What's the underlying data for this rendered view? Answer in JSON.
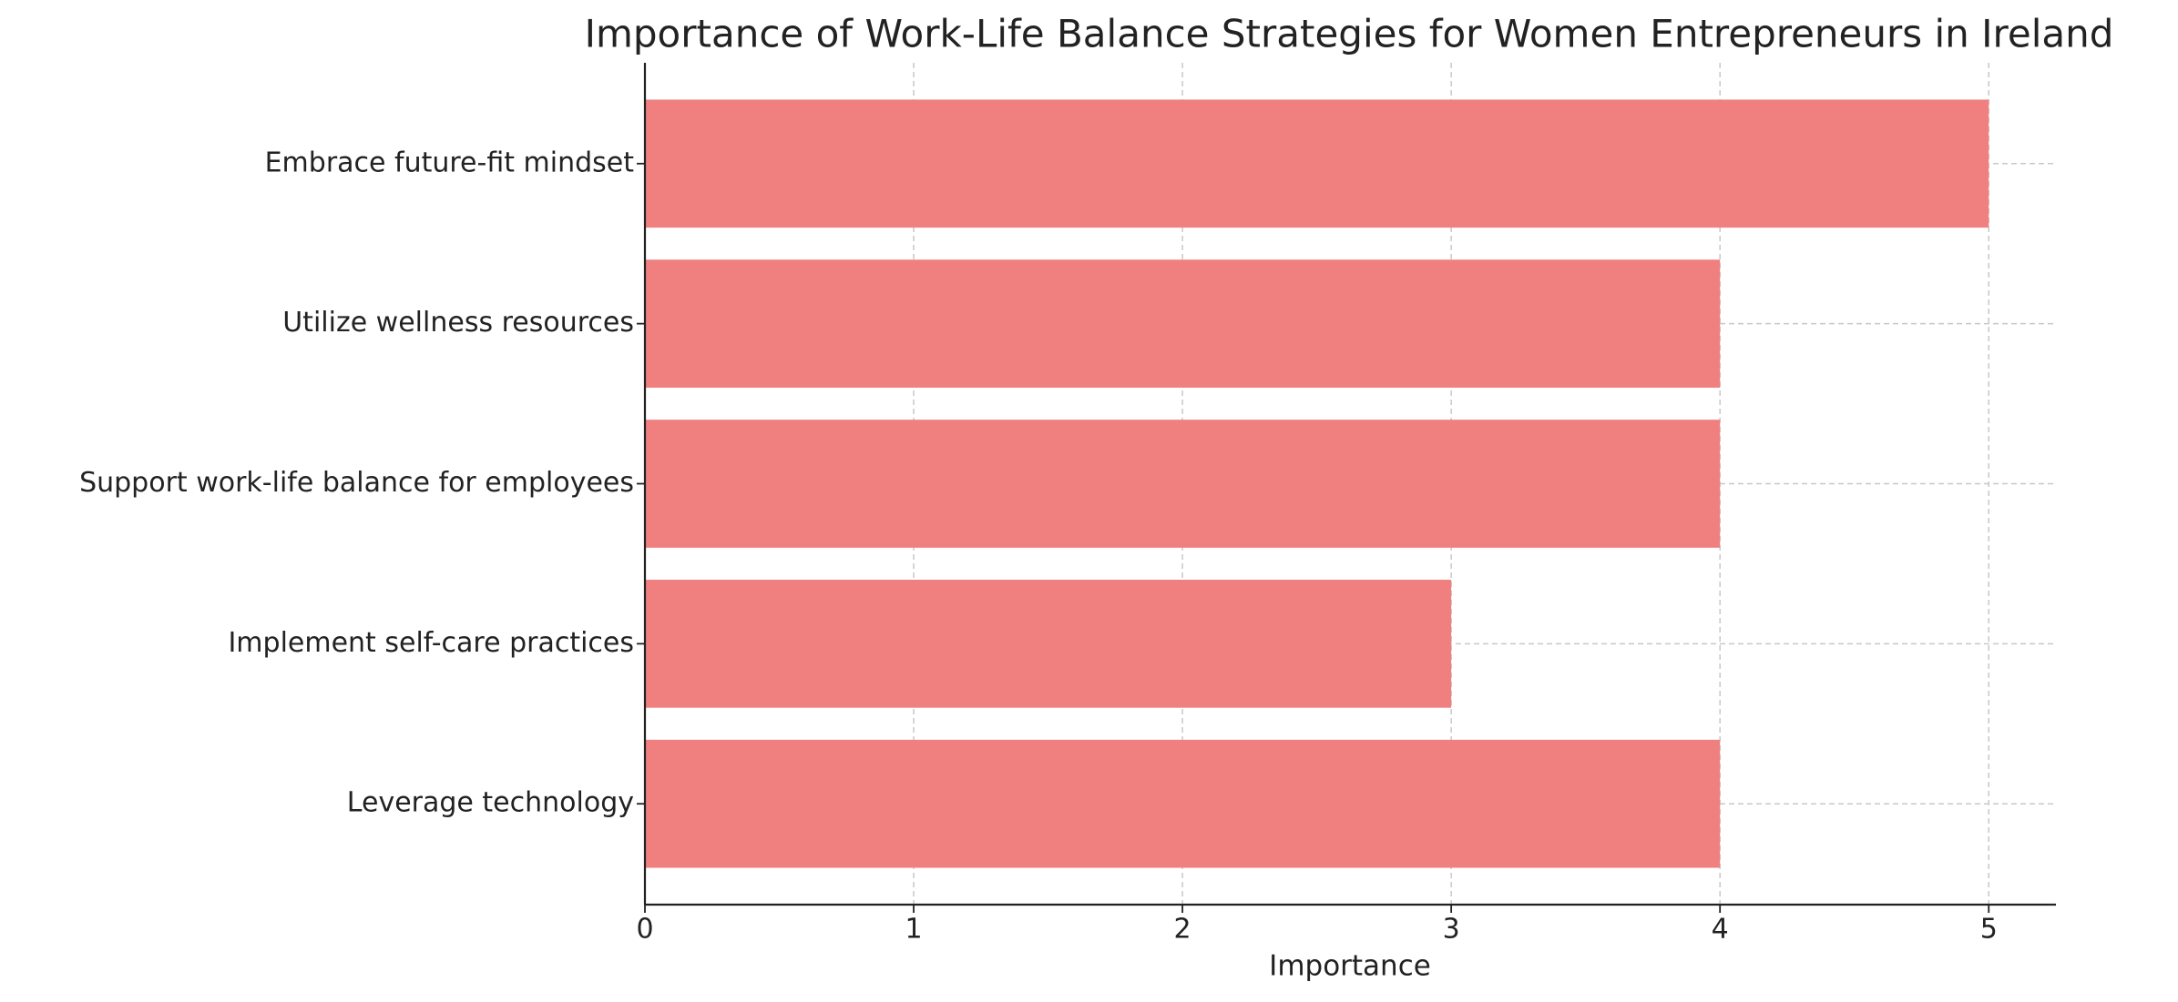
{
  "chart_data": {
    "type": "barh",
    "title": "Importance of Work-Life Balance Strategies for Women Entrepreneurs in Ireland",
    "x_label": "Importance",
    "categories": [
      "Leverage technology",
      "Implement self-care practices",
      "Support work-life balance for employees",
      "Utilize wellness resources",
      "Embrace future-fit mindset"
    ],
    "values": [
      4,
      3,
      4,
      4,
      5
    ],
    "color": "#f08080",
    "xlim": [
      0,
      5.25
    ],
    "xticks": [
      0,
      1,
      2,
      3,
      4,
      5
    ],
    "grid": true
  }
}
